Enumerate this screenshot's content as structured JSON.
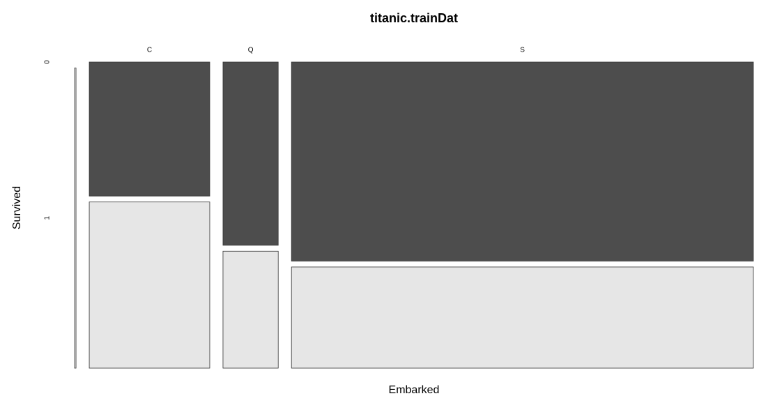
{
  "chart_data": {
    "type": "mosaic",
    "title": "titanic.trainDat",
    "x_label": "Embarked",
    "y_label": "Survived",
    "categories": [
      null,
      "C",
      "Q",
      "S"
    ],
    "series": [
      {
        "name": "0",
        "color": "#4d4d4d",
        "values": [
          0,
          75,
          47,
          427
        ]
      },
      {
        "name": "1",
        "color": "#e6e6e6",
        "values": [
          2,
          93,
          30,
          217
        ]
      }
    ]
  }
}
